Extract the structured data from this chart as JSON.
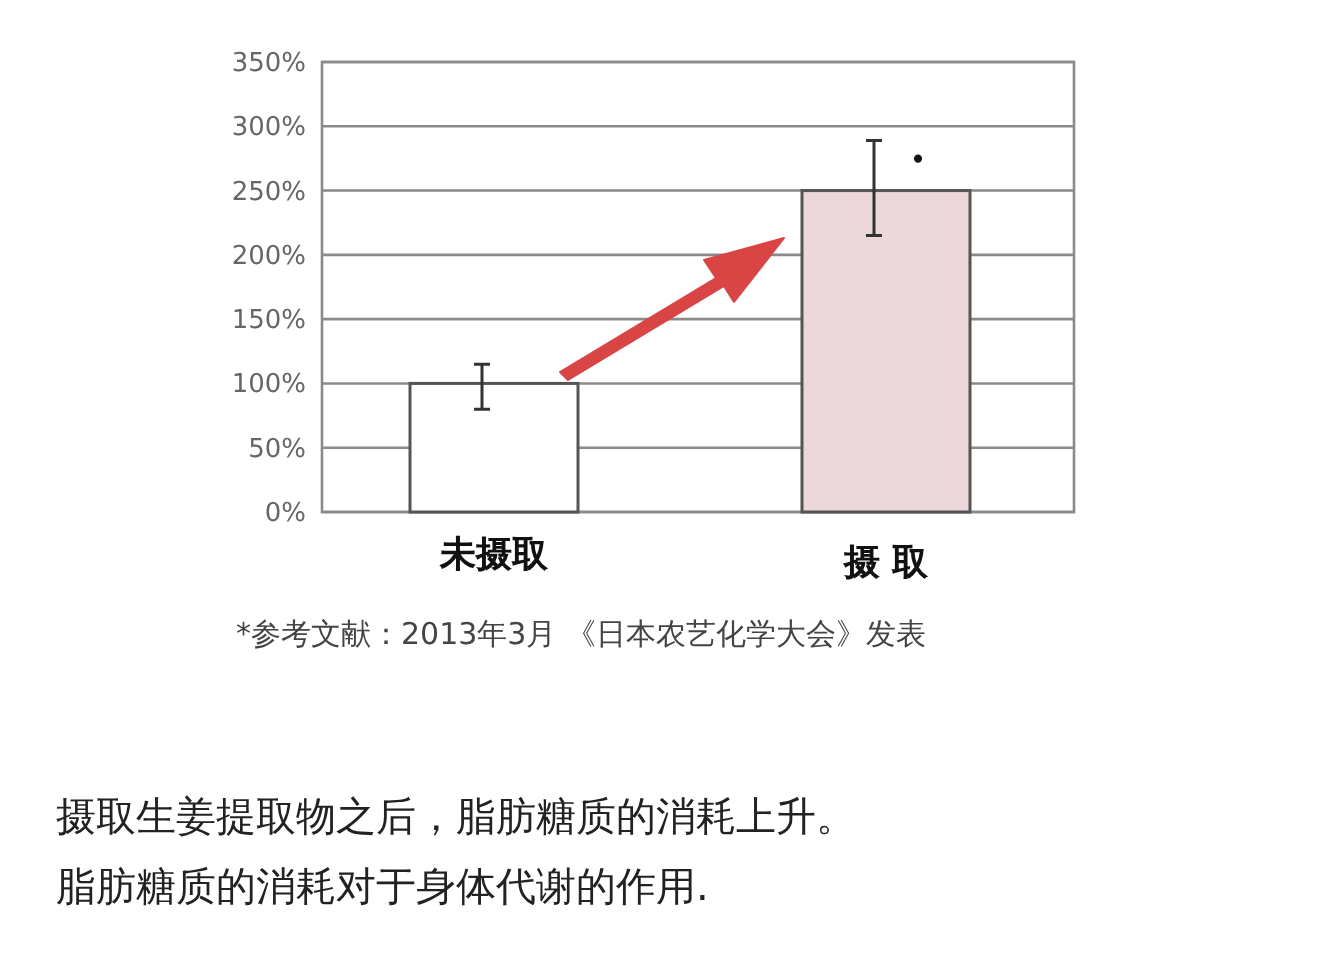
{
  "chart_data": {
    "type": "bar",
    "categories": [
      "未摄取",
      "摄 取"
    ],
    "values": [
      100,
      250
    ],
    "colors": [
      "#ffffff",
      "#ecd8da"
    ],
    "errors": [
      [
        80,
        115
      ],
      [
        215,
        289
      ]
    ],
    "ylim": [
      0,
      350
    ],
    "yticks": [
      {
        "value": 0,
        "label": "0%"
      },
      {
        "value": 50,
        "label": "50%"
      },
      {
        "value": 100,
        "label": "100%"
      },
      {
        "value": 150,
        "label": "150%"
      },
      {
        "value": 200,
        "label": "200%"
      },
      {
        "value": 250,
        "label": "250%"
      },
      {
        "value": 300,
        "label": "300%"
      },
      {
        "value": 350,
        "label": "350%"
      }
    ],
    "grid": "y",
    "annotations": [
      "•",
      "*参考文献：2013年3月 《日本农艺化学大会》发表",
      "摄取生姜提取物之后，脂肪糖质的消耗上升。",
      "脂肪糖质的消耗对于身体代谢的作用."
    ]
  }
}
